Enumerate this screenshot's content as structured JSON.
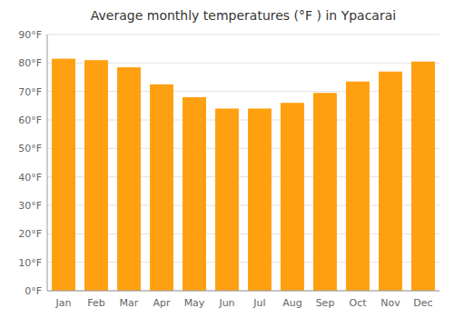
{
  "chart_data": {
    "type": "bar",
    "title": "Average monthly temperatures (°F ) in Ypacarai",
    "categories": [
      "Jan",
      "Feb",
      "Mar",
      "Apr",
      "May",
      "Jun",
      "Jul",
      "Aug",
      "Sep",
      "Oct",
      "Nov",
      "Dec"
    ],
    "values": [
      81.5,
      81.0,
      78.5,
      72.5,
      68.0,
      64.0,
      64.0,
      66.0,
      69.5,
      73.5,
      77.0,
      80.5
    ],
    "color": "#FFA010",
    "ylim": [
      0,
      90
    ],
    "yticks": [
      {
        "value": 0,
        "label": "0°F"
      },
      {
        "value": 10,
        "label": "10°F"
      },
      {
        "value": 20,
        "label": "20°F"
      },
      {
        "value": 30,
        "label": "30°F"
      },
      {
        "value": 40,
        "label": "40°F"
      },
      {
        "value": 50,
        "label": "50°F"
      },
      {
        "value": 60,
        "label": "60°F"
      },
      {
        "value": 70,
        "label": "70°F"
      },
      {
        "value": 80,
        "label": "80°F"
      },
      {
        "value": 90,
        "label": "90°F"
      }
    ],
    "grid": true
  }
}
